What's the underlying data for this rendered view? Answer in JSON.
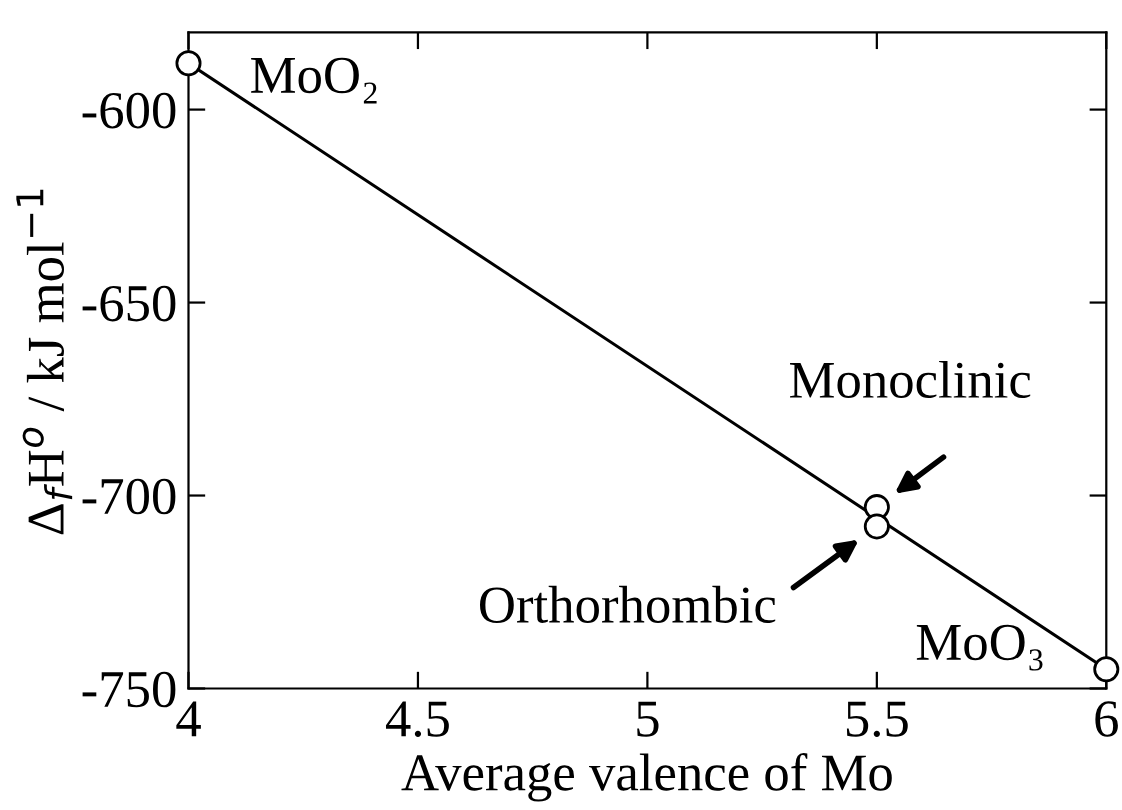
{
  "chart_data": {
    "type": "scatter",
    "xlabel": "Average valence of Mo",
    "ylabel": "Δ$_{f}$H$^{o}$ / kJ mol$^{−1}$",
    "xlim": [
      4,
      6
    ],
    "xticks": [
      4,
      {
        "value": 4.5,
        "label": "4.5"
      },
      5,
      {
        "value": 5.5,
        "label": "5.5"
      },
      6
    ],
    "ylim": [
      -750,
      -580
    ],
    "yticks": [
      -750,
      -700,
      -650,
      -600
    ],
    "grid": false,
    "legend": false,
    "series": [
      {
        "type": "line",
        "color": "#000000",
        "x": [
          4,
          6
        ],
        "values": [
          -588,
          -745
        ],
        "line_style": "solid"
      },
      {
        "color": "#000000",
        "x": [
          4,
          5.5,
          5.5,
          6
        ],
        "values": [
          -588,
          -703,
          -708,
          -745
        ],
        "marker": "circle"
      }
    ],
    "annotations": [
      {
        "text": "MoO₂",
        "x": 4,
        "y": -588
      },
      {
        "text": "Monoclinic",
        "x": 5.5,
        "y": -703
      },
      {
        "text": "Orthorhombic",
        "x": 5.5,
        "y": -708
      },
      {
        "text": "MoO₃",
        "x": 6,
        "y": -745
      }
    ]
  }
}
